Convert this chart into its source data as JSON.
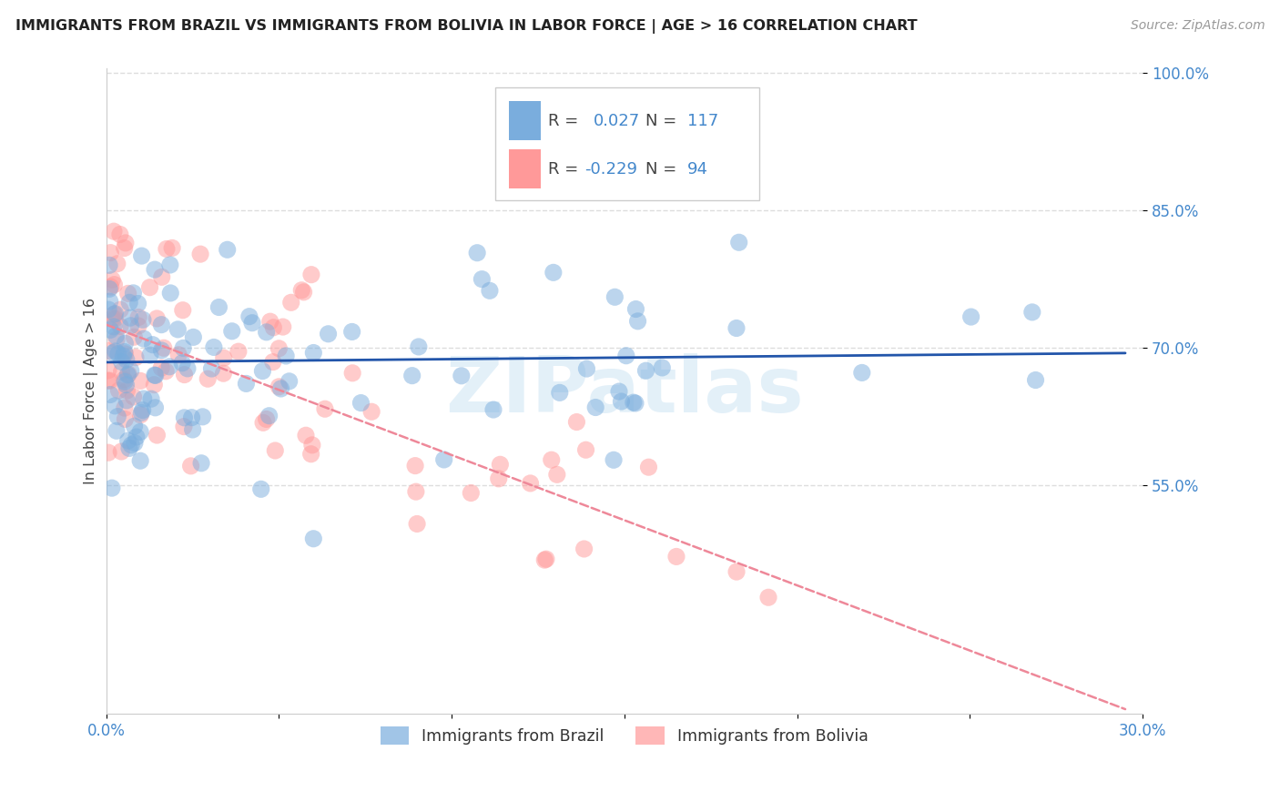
{
  "title": "IMMIGRANTS FROM BRAZIL VS IMMIGRANTS FROM BOLIVIA IN LABOR FORCE | AGE > 16 CORRELATION CHART",
  "source": "Source: ZipAtlas.com",
  "ylabel": "In Labor Force | Age > 16",
  "x_min": 0.0,
  "x_max": 0.3,
  "y_min": 0.3,
  "y_max": 1.005,
  "brazil_color": "#7aaddd",
  "bolivia_color": "#ff9999",
  "brazil_R": 0.027,
  "brazil_N": 117,
  "bolivia_R": -0.229,
  "bolivia_N": 94,
  "brazil_line_color": "#2255aa",
  "bolivia_line_color": "#ee8899",
  "grid_color": "#dddddd",
  "legend_label1": "Immigrants from Brazil",
  "legend_label2": "Immigrants from Bolivia",
  "text_blue": "#4488cc",
  "text_dark": "#444444",
  "brazil_line_x0": 0.0,
  "brazil_line_x1": 0.295,
  "brazil_line_y0": 0.684,
  "brazil_line_y1": 0.694,
  "bolivia_line_x0": 0.0,
  "bolivia_line_x1": 0.295,
  "bolivia_line_y0": 0.725,
  "bolivia_line_y1": 0.305
}
